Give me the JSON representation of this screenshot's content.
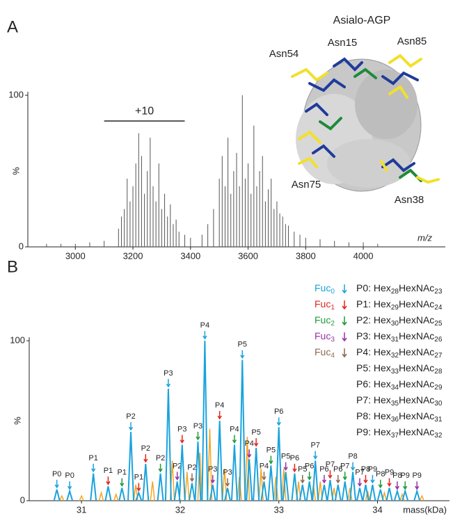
{
  "panels": [
    "A",
    "B"
  ],
  "structure": {
    "title": "Asialo-AGP",
    "sites": [
      "Asn54",
      "Asn15",
      "Asn85",
      "Asn75",
      "Asn38"
    ]
  },
  "chart_data": [
    {
      "type": "spectrum",
      "ylabel": "%",
      "xlabel": "m/z",
      "color": "#555555",
      "xlim": [
        2835,
        4285
      ],
      "xticks": [
        3000,
        3200,
        3400,
        3600,
        3800,
        4000
      ],
      "ylim": [
        0,
        100
      ],
      "yticks": [
        0,
        100
      ],
      "bracket": {
        "label": "+10",
        "x": [
          3100,
          3380
        ],
        "y": 83
      },
      "x": [
        2900,
        2950,
        3000,
        3050,
        3100,
        3150,
        3160,
        3170,
        3180,
        3190,
        3200,
        3210,
        3220,
        3230,
        3240,
        3250,
        3260,
        3270,
        3280,
        3290,
        3300,
        3310,
        3320,
        3330,
        3340,
        3350,
        3360,
        3380,
        3400,
        3440,
        3460,
        3480,
        3500,
        3510,
        3520,
        3530,
        3540,
        3550,
        3560,
        3570,
        3580,
        3590,
        3600,
        3610,
        3620,
        3630,
        3640,
        3650,
        3660,
        3670,
        3680,
        3690,
        3700,
        3710,
        3720,
        3730,
        3740,
        3760,
        3780,
        3800,
        3850,
        3900,
        3950,
        4000,
        4050
      ],
      "values": [
        2,
        2,
        2,
        3,
        4,
        12,
        20,
        25,
        45,
        30,
        40,
        55,
        75,
        60,
        35,
        50,
        72,
        40,
        30,
        55,
        25,
        35,
        20,
        28,
        15,
        18,
        10,
        8,
        6,
        8,
        15,
        25,
        45,
        60,
        40,
        72,
        35,
        50,
        62,
        40,
        100,
        45,
        55,
        35,
        80,
        40,
        50,
        60,
        30,
        38,
        45,
        25,
        30,
        22,
        20,
        15,
        14,
        10,
        8,
        6,
        5,
        4,
        3,
        3,
        2
      ]
    },
    {
      "type": "deconvoluted",
      "ylabel": "%",
      "xlabel": "mass(kDa)",
      "xlim": [
        30.47,
        34.73
      ],
      "xticks": [
        31,
        32,
        33,
        34
      ],
      "ylim": [
        0,
        100
      ],
      "yticks": [
        0,
        100
      ],
      "fucose_legend": [
        {
          "text": [
            "Fuc",
            "0"
          ],
          "color": "#1aa3dd"
        },
        {
          "text": [
            "Fuc",
            "1"
          ],
          "color": "#e3251c"
        },
        {
          "text": [
            "Fuc",
            "2"
          ],
          "color": "#1e9b3a"
        },
        {
          "text": [
            "Fuc",
            "3"
          ],
          "color": "#9b30a8"
        },
        {
          "text": [
            "Fuc",
            "4"
          ],
          "color": "#8b6a4f"
        }
      ],
      "compositions": [
        [
          "P0: Hex",
          "28",
          "HexNAc",
          "23"
        ],
        [
          "P1: Hex",
          "29",
          "HexNAc",
          "24"
        ],
        [
          "P2: Hex",
          "30",
          "HexNAc",
          "25"
        ],
        [
          "P3: Hex",
          "31",
          "HexNAc",
          "26"
        ],
        [
          "P4: Hex",
          "32",
          "HexNAc",
          "27"
        ],
        [
          "P5: Hex",
          "33",
          "HexNAc",
          "28"
        ],
        [
          "P6: Hex",
          "34",
          "HexNAc",
          "29"
        ],
        [
          "P7: Hex",
          "35",
          "HexNAc",
          "30"
        ],
        [
          "P8: Hex",
          "36",
          "HexNAc",
          "31"
        ],
        [
          "P9: Hex",
          "37",
          "HexNAc",
          "32"
        ]
      ],
      "peaks": {
        "color": "#1aa3dd",
        "x": [
          30.75,
          30.88,
          31.12,
          31.27,
          31.41,
          31.5,
          31.58,
          31.65,
          31.8,
          31.88,
          31.97,
          32.02,
          32.12,
          32.18,
          32.25,
          32.33,
          32.4,
          32.48,
          32.55,
          32.63,
          32.7,
          32.77,
          32.85,
          32.92,
          33.0,
          33.07,
          33.16,
          33.24,
          33.31,
          33.37,
          33.46,
          33.52,
          33.6,
          33.67,
          33.75,
          33.82,
          33.88,
          33.95,
          34.03,
          34.12,
          34.2,
          34.28,
          34.4
        ],
        "values": [
          7,
          6,
          17,
          9,
          8,
          43,
          5,
          23,
          17,
          70,
          12,
          35,
          11,
          37,
          100,
          10,
          50,
          8,
          35,
          88,
          26,
          33,
          12,
          22,
          46,
          18,
          17,
          10,
          12,
          25,
          10,
          13,
          10,
          12,
          18,
          8,
          10,
          10,
          7,
          8,
          6,
          6,
          6
        ],
        "labels": [
          "P0",
          "P0",
          "P1",
          "P1",
          "P1",
          "P2",
          "P1",
          "P2",
          "P2",
          "P3",
          "P2",
          "P3",
          "P2",
          "P3",
          "P4",
          "P3",
          "P4",
          "P3",
          "P4",
          "P5",
          "P4",
          "P5",
          "P4",
          "P5",
          "P6",
          "P5",
          "P6",
          "P5",
          "P6",
          "P7",
          "P6",
          "P7",
          "P6",
          "P7",
          "P8",
          "P7",
          "P8",
          "P9",
          "P8",
          "P9",
          "P8",
          "P9",
          "P9"
        ],
        "fuc": [
          0,
          0,
          0,
          1,
          2,
          0,
          1,
          1,
          2,
          0,
          3,
          1,
          4,
          2,
          0,
          3,
          1,
          4,
          2,
          0,
          3,
          1,
          4,
          2,
          0,
          3,
          1,
          4,
          2,
          0,
          3,
          1,
          4,
          2,
          0,
          3,
          1,
          0,
          2,
          1,
          3,
          2,
          3
        ]
      },
      "minor_peaks": {
        "color": "#f5a623",
        "x": [
          30.8,
          31.0,
          31.2,
          31.35,
          31.55,
          31.72,
          31.92,
          32.07,
          32.2,
          32.3,
          32.45,
          32.6,
          32.68,
          32.82,
          32.97,
          33.05,
          33.2,
          33.35,
          33.42,
          33.56,
          33.72,
          33.9,
          34.07,
          34.25,
          34.45
        ],
        "values": [
          3,
          3,
          5,
          4,
          10,
          12,
          25,
          18,
          30,
          45,
          20,
          15,
          40,
          20,
          15,
          20,
          12,
          10,
          12,
          8,
          8,
          6,
          5,
          4,
          3
        ]
      }
    }
  ]
}
